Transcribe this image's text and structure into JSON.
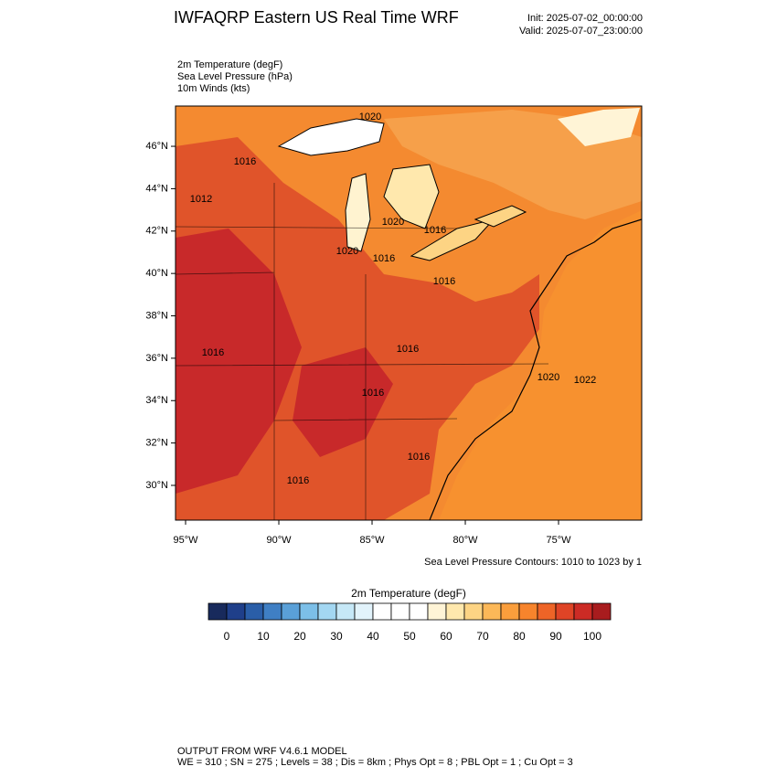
{
  "header": {
    "title": "IWFAQRP Eastern US Real Time WRF",
    "init": "Init: 2025-07-02_00:00:00",
    "valid": "Valid: 2025-07-07_23:00:00"
  },
  "fields": [
    "2m Temperature   (degF)",
    "Sea Level Pressure   (hPa)",
    "10m Winds   (kts)"
  ],
  "map": {
    "latlim": [
      28.36,
      47.9
    ],
    "lonlim": [
      -95.54,
      -70.54
    ],
    "latticks": [
      {
        "value": 30,
        "label": "30°N"
      },
      {
        "value": 32,
        "label": "32°N"
      },
      {
        "value": 34,
        "label": "34°N"
      },
      {
        "value": 36,
        "label": "36°N"
      },
      {
        "value": 38,
        "label": "38°N"
      },
      {
        "value": 40,
        "label": "40°N"
      },
      {
        "value": 42,
        "label": "42°N"
      },
      {
        "value": 44,
        "label": "44°N"
      },
      {
        "value": 46,
        "label": "46°N"
      }
    ],
    "lonticks": [
      {
        "value": -95,
        "label": "95°W"
      },
      {
        "value": -90,
        "label": "90°W"
      },
      {
        "value": -85,
        "label": "85°W"
      },
      {
        "value": -80,
        "label": "80°W"
      },
      {
        "value": -75,
        "label": "75°W"
      }
    ],
    "contour_labels": [
      "1020",
      "1016",
      "1012",
      "1020",
      "1016",
      "1020",
      "1016",
      "1016",
      "1016",
      "1020",
      "1022",
      "1016",
      "1016",
      "1016",
      "1016"
    ],
    "contour_note": "Sea Level Pressure Contours: 1010 to 1023 by 1"
  },
  "colorbar": {
    "title": "2m Temperature  (degF)",
    "lim": [
      -5,
      105
    ],
    "ticks": [
      0,
      10,
      20,
      30,
      40,
      50,
      60,
      70,
      80,
      90,
      100
    ],
    "colors": [
      "#182a5c",
      "#1f3f8a",
      "#2a5ea8",
      "#3f7fc4",
      "#5aa0d8",
      "#7cbfe8",
      "#a3d7f2",
      "#c6e8f7",
      "#e2f3fb",
      "#ffffff",
      "#ffffff",
      "#ffffff",
      "#fff4d6",
      "#ffe8ad",
      "#fdd484",
      "#fcb858",
      "#fa9e3c",
      "#f7842c",
      "#ee6427",
      "#df4426",
      "#cc2b25",
      "#a81c1e"
    ]
  },
  "footer": [
    "OUTPUT FROM WRF V4.6.1 MODEL",
    "WE = 310 ; SN = 275 ; Levels = 38 ; Dis = 8km ; Phys Opt = 8 ; PBL Opt = 1 ; Cu Opt = 3"
  ]
}
